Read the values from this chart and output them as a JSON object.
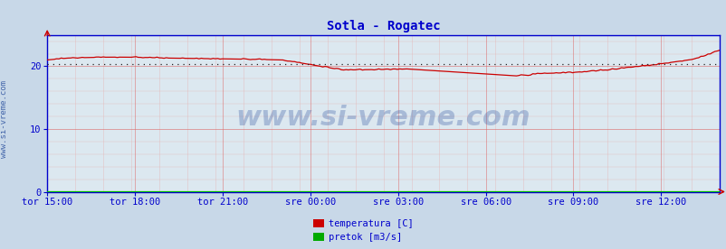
{
  "title": "Sotla - Rogatec",
  "title_color": "#0000cc",
  "title_fontsize": 10,
  "bg_color": "#c8d8e8",
  "plot_bg_color": "#dce8f0",
  "ylim": [
    0,
    25
  ],
  "yticks": [
    0,
    10,
    20
  ],
  "tick_color": "#0000cc",
  "grid_color_major": "#dd6666",
  "grid_color_minor": "#e8aaaa",
  "watermark": "www.si-vreme.com",
  "watermark_color": "#4466aa",
  "watermark_alpha": 0.35,
  "watermark_fontsize": 22,
  "xtick_labels": [
    "tor 15:00",
    "tor 18:00",
    "tor 21:00",
    "sre 00:00",
    "sre 03:00",
    "sre 06:00",
    "sre 09:00",
    "sre 12:00"
  ],
  "xtick_positions_norm": [
    0.0,
    0.1304,
    0.2609,
    0.3913,
    0.5217,
    0.6522,
    0.7826,
    0.913
  ],
  "legend_labels": [
    "temperatura [C]",
    "pretok [m3/s]"
  ],
  "legend_colors": [
    "#cc0000",
    "#00aa00"
  ],
  "sidebar_text": "www.si-vreme.com",
  "sidebar_color": "#4466aa",
  "sidebar_fontsize": 6.5,
  "avg_line_y": 20.3,
  "avg_line_color": "#222222",
  "temp_color": "#cc0000",
  "pretok_color": "#00bb00",
  "axes_color": "#0000cc",
  "spine_color": "#0000cc"
}
